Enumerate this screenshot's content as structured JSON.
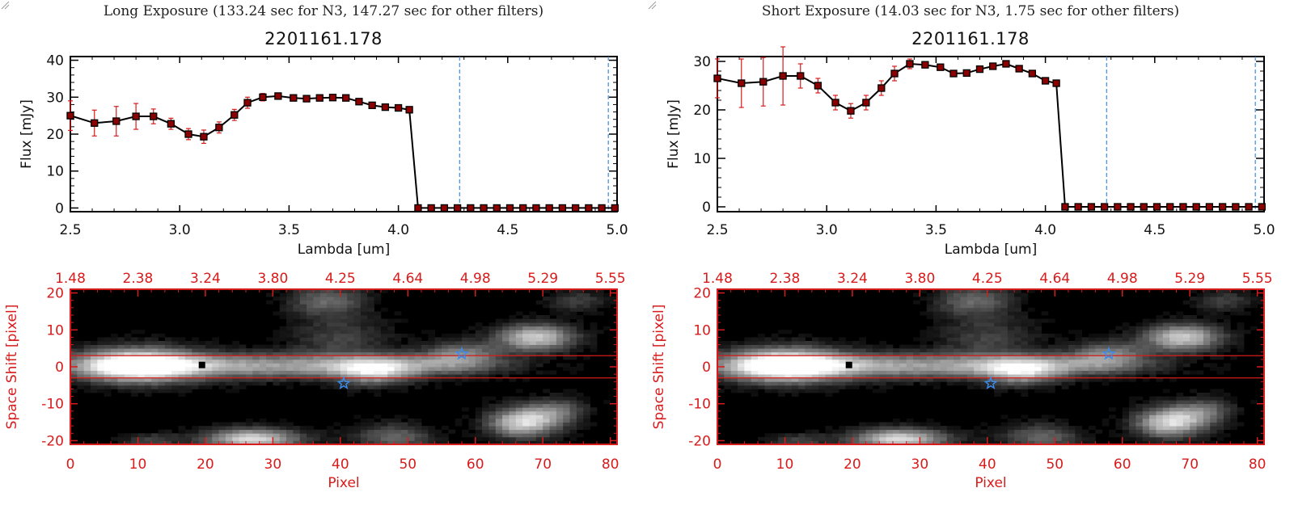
{
  "chart_data": [
    {
      "type": "line",
      "exposure_title": "Long Exposure (133.24 sec for N3, 147.27 sec for other filters)",
      "title": "2201161.178",
      "xlabel": "Lambda [um]",
      "ylabel": "Flux [mJy]",
      "xlim": [
        2.5,
        5.0
      ],
      "ylim": [
        -1,
        41
      ],
      "xticks": [
        "2.5",
        "3.0",
        "3.5",
        "4.0",
        "4.5",
        "5.0"
      ],
      "yticks": [
        "0",
        "10",
        "20",
        "30",
        "40"
      ],
      "vlines": [
        4.28,
        4.96
      ],
      "series": [
        {
          "x": [
            2.5,
            2.61,
            2.71,
            2.8,
            2.88,
            2.96,
            3.04,
            3.11,
            3.18,
            3.25,
            3.31,
            3.38,
            3.45,
            3.52,
            3.58,
            3.64,
            3.7,
            3.76,
            3.82,
            3.88,
            3.94,
            4.0,
            4.05,
            4.09,
            4.15,
            4.21,
            4.27,
            4.33,
            4.39,
            4.45,
            4.51,
            4.57,
            4.63,
            4.69,
            4.75,
            4.81,
            4.87,
            4.93,
            4.99
          ],
          "y": [
            25,
            23,
            23.5,
            24.8,
            24.8,
            22.8,
            20,
            19.3,
            21.8,
            25.2,
            28.5,
            30,
            30.3,
            29.8,
            29.6,
            29.8,
            29.9,
            29.8,
            28.8,
            27.8,
            27.3,
            27.1,
            26.6,
            0,
            0,
            0,
            0,
            0,
            0,
            0,
            0,
            0,
            0,
            0,
            0,
            0,
            0,
            0,
            0
          ],
          "err": [
            4,
            3.5,
            4,
            3.5,
            2,
            1.5,
            1.5,
            1.8,
            1.5,
            1.5,
            1.5,
            1,
            0.6,
            0.5,
            0.5,
            0.5,
            0.5,
            0.5,
            0.5,
            0.5,
            0.5,
            0.5,
            0.5,
            0,
            0,
            0,
            0,
            0,
            0,
            0,
            0,
            0,
            0,
            0,
            0,
            0,
            0,
            0,
            0
          ]
        }
      ],
      "image_panel": {
        "type": "heatmap",
        "xlabel": "Pixel",
        "ylabel": "Space Shift [pixel]",
        "xlim": [
          0,
          81
        ],
        "ylim": [
          -21,
          21
        ],
        "xticks": [
          "0",
          "10",
          "20",
          "30",
          "40",
          "50",
          "60",
          "70",
          "80"
        ],
        "yticks": [
          "-20",
          "-10",
          "0",
          "10",
          "20"
        ],
        "top_ticks": [
          "1.48",
          "2.38",
          "3.24",
          "3.80",
          "4.25",
          "4.64",
          "4.98",
          "5.29",
          "5.55"
        ],
        "aperture_lines": [
          3,
          -3
        ],
        "source_marker": [
          19.5,
          0.5
        ],
        "star_markers": [
          [
            58,
            3.5
          ],
          [
            40.5,
            -4.5
          ]
        ]
      }
    },
    {
      "type": "line",
      "exposure_title": "Short Exposure (14.03 sec for N3, 1.75 sec for other filters)",
      "title": "2201161.178",
      "xlabel": "Lambda [um]",
      "ylabel": "Flux [mJy]",
      "xlim": [
        2.5,
        5.0
      ],
      "ylim": [
        -1,
        31
      ],
      "xticks": [
        "2.5",
        "3.0",
        "3.5",
        "4.0",
        "4.5",
        "5.0"
      ],
      "yticks": [
        "0",
        "10",
        "20",
        "30"
      ],
      "vlines": [
        4.28,
        4.96
      ],
      "series": [
        {
          "x": [
            2.5,
            2.61,
            2.71,
            2.8,
            2.88,
            2.96,
            3.04,
            3.11,
            3.18,
            3.25,
            3.31,
            3.38,
            3.45,
            3.52,
            3.58,
            3.64,
            3.7,
            3.76,
            3.82,
            3.88,
            3.94,
            4.0,
            4.05,
            4.09,
            4.15,
            4.21,
            4.27,
            4.33,
            4.39,
            4.45,
            4.51,
            4.57,
            4.63,
            4.69,
            4.75,
            4.81,
            4.87,
            4.93,
            4.99
          ],
          "y": [
            26.5,
            25.5,
            25.8,
            27,
            27,
            25,
            21.5,
            19.8,
            21.5,
            24.5,
            27.5,
            29.5,
            29.3,
            28.8,
            27.5,
            27.6,
            28.4,
            29,
            29.5,
            28.5,
            27.5,
            26,
            25.5,
            0,
            0,
            0,
            0,
            0,
            0,
            0,
            0,
            0,
            0,
            0,
            0,
            0,
            0,
            0,
            0
          ],
          "err": [
            4,
            5,
            5,
            6,
            2.5,
            1.5,
            1.5,
            1.5,
            1.5,
            1.5,
            1.5,
            1,
            0.6,
            0.6,
            0.6,
            0.6,
            0.6,
            0.6,
            0.6,
            0.6,
            0.6,
            0.6,
            0.6,
            0,
            0,
            0,
            0,
            0,
            0,
            0,
            0,
            0,
            0,
            0,
            0,
            0,
            0,
            0,
            0
          ]
        }
      ],
      "image_panel": {
        "type": "heatmap",
        "xlabel": "Pixel",
        "ylabel": "Space Shift [pixel]",
        "xlim": [
          0,
          81
        ],
        "ylim": [
          -21,
          21
        ],
        "xticks": [
          "0",
          "10",
          "20",
          "30",
          "40",
          "50",
          "60",
          "70",
          "80"
        ],
        "yticks": [
          "-20",
          "-10",
          "0",
          "10",
          "20"
        ],
        "top_ticks": [
          "1.48",
          "2.38",
          "3.24",
          "3.80",
          "4.25",
          "4.64",
          "4.98",
          "5.29",
          "5.55"
        ],
        "aperture_lines": [
          3,
          -3
        ],
        "source_marker": [
          19.5,
          0.5
        ],
        "star_markers": [
          [
            58,
            3.5
          ],
          [
            40.5,
            -4.5
          ]
        ]
      }
    }
  ]
}
